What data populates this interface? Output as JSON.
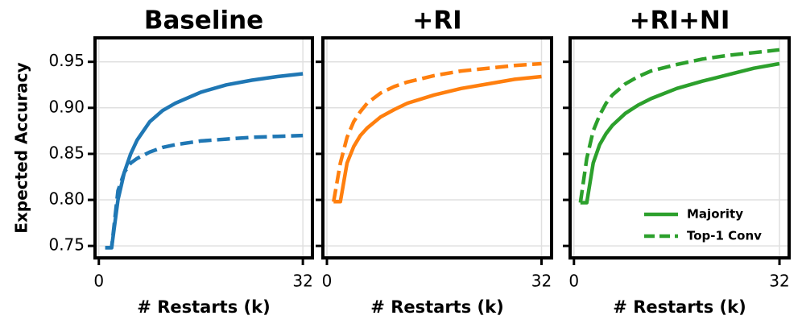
{
  "chart_data": [
    {
      "type": "line",
      "title": "Baseline",
      "xlabel": "# Restarts (k)",
      "ylabel": "Expected Accuracy",
      "x": [
        1,
        2,
        3,
        4,
        5,
        6,
        8,
        10,
        12,
        16,
        20,
        24,
        28,
        32
      ],
      "series": [
        {
          "color": "#1f77b4",
          "linestyle": "solid",
          "values": [
            0.748,
            0.748,
            0.8,
            0.83,
            0.85,
            0.865,
            0.885,
            0.897,
            0.905,
            0.917,
            0.925,
            0.93,
            0.934,
            0.937
          ]
        },
        {
          "color": "#1f77b4",
          "linestyle": "dashed",
          "values": [
            0.748,
            0.748,
            0.81,
            0.83,
            0.84,
            0.845,
            0.852,
            0.857,
            0.86,
            0.864,
            0.866,
            0.868,
            0.869,
            0.87
          ]
        }
      ],
      "xlim": [
        -0.6,
        33.5
      ],
      "xticks": [
        0,
        32
      ],
      "ylim": [
        0.737,
        0.976
      ],
      "yticks": [
        0.75,
        {
          "value": 0.8,
          "label": "0.80"
        },
        0.85,
        {
          "value": 0.9,
          "label": "0.90"
        },
        0.95
      ],
      "show_yticklabels": true,
      "grid": true
    },
    {
      "type": "line",
      "title": "+RI",
      "xlabel": "# Restarts (k)",
      "x": [
        1,
        2,
        3,
        4,
        5,
        6,
        8,
        10,
        12,
        16,
        20,
        24,
        28,
        32
      ],
      "series": [
        {
          "color": "#ff7f0e",
          "linestyle": "solid",
          "values": [
            0.798,
            0.798,
            0.84,
            0.858,
            0.87,
            0.878,
            0.89,
            0.898,
            0.905,
            0.914,
            0.921,
            0.926,
            0.931,
            0.934
          ]
        },
        {
          "color": "#ff7f0e",
          "linestyle": "dashed",
          "values": [
            0.798,
            0.84,
            0.868,
            0.885,
            0.896,
            0.905,
            0.916,
            0.923,
            0.928,
            0.935,
            0.94,
            0.943,
            0.946,
            0.948
          ]
        }
      ],
      "xlim": [
        -0.6,
        33.5
      ],
      "xticks": [
        0,
        32
      ],
      "ylim": [
        0.737,
        0.976
      ],
      "yticks": [
        0.75,
        0.8,
        0.85,
        0.9,
        0.95
      ],
      "show_yticklabels": false,
      "grid": true
    },
    {
      "type": "line",
      "title": "+RI+NI",
      "xlabel": "# Restarts (k)",
      "x": [
        1,
        2,
        3,
        4,
        5,
        6,
        8,
        10,
        12,
        16,
        20,
        24,
        28,
        32
      ],
      "series": [
        {
          "name": "Majority",
          "color": "#2ca02c",
          "linestyle": "solid",
          "values": [
            0.797,
            0.797,
            0.84,
            0.86,
            0.872,
            0.881,
            0.894,
            0.903,
            0.91,
            0.921,
            0.929,
            0.936,
            0.943,
            0.948
          ]
        },
        {
          "name": "Top-1 Conv",
          "color": "#2ca02c",
          "linestyle": "dashed",
          "values": [
            0.797,
            0.845,
            0.875,
            0.892,
            0.905,
            0.914,
            0.926,
            0.934,
            0.94,
            0.947,
            0.953,
            0.957,
            0.96,
            0.963
          ]
        }
      ],
      "xlim": [
        -0.6,
        33.5
      ],
      "xticks": [
        0,
        32
      ],
      "ylim": [
        0.737,
        0.976
      ],
      "yticks": [
        0.75,
        0.8,
        0.85,
        0.9,
        0.95
      ],
      "show_yticklabels": false,
      "grid": true,
      "legend": "lower right"
    }
  ]
}
